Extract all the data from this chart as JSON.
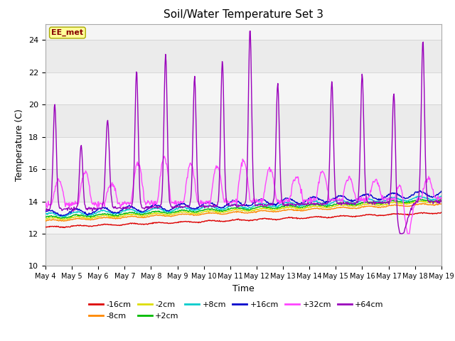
{
  "title": "Soil/Water Temperature Set 3",
  "xlabel": "Time",
  "ylabel": "Temperature (C)",
  "ylim": [
    10,
    25
  ],
  "yticks": [
    10,
    12,
    14,
    16,
    18,
    20,
    22,
    24
  ],
  "x_labels": [
    "May 4",
    "May 5",
    "May 6",
    "May 7",
    "May 8",
    "May 9",
    "May 10",
    "May 11",
    "May 12",
    "May 13",
    "May 14",
    "May 15",
    "May 16",
    "May 17",
    "May 18",
    "May 19"
  ],
  "legend_label": "EE_met",
  "fig_bg": "#ffffff",
  "plot_bg": "#f5f5f5",
  "hband_colors": [
    "#ebebeb",
    "#f5f5f5"
  ],
  "series": [
    {
      "label": "-16cm",
      "color": "#dd0000"
    },
    {
      "label": "-8cm",
      "color": "#ff8800"
    },
    {
      "label": "-2cm",
      "color": "#dddd00"
    },
    {
      "label": "+2cm",
      "color": "#00bb00"
    },
    {
      "label": "+8cm",
      "color": "#00cccc"
    },
    {
      "label": "+16cm",
      "color": "#0000cc"
    },
    {
      "label": "+32cm",
      "color": "#ff44ff"
    },
    {
      "label": "+64cm",
      "color": "#9900bb"
    }
  ]
}
